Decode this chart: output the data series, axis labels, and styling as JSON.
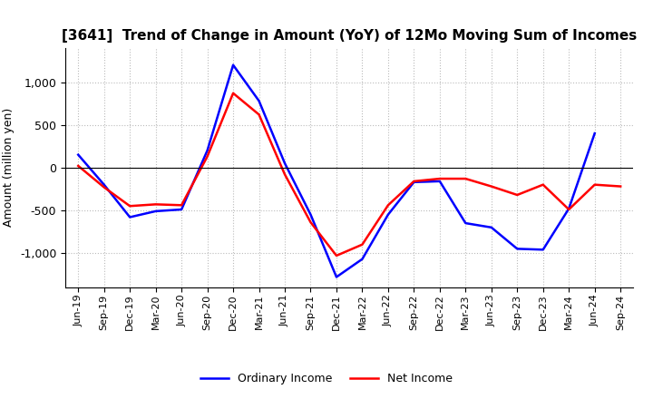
{
  "title": "[3641]  Trend of Change in Amount (YoY) of 12Mo Moving Sum of Incomes",
  "ylabel": "Amount (million yen)",
  "labels": [
    "Jun-19",
    "Sep-19",
    "Dec-19",
    "Mar-20",
    "Jun-20",
    "Sep-20",
    "Dec-20",
    "Mar-21",
    "Jun-21",
    "Sep-21",
    "Dec-21",
    "Mar-22",
    "Jun-22",
    "Sep-22",
    "Dec-22",
    "Mar-23",
    "Jun-23",
    "Sep-23",
    "Dec-23",
    "Mar-24",
    "Jun-24",
    "Sep-24"
  ],
  "ordinary_income": [
    150,
    -200,
    -580,
    -510,
    -490,
    200,
    1200,
    780,
    50,
    -550,
    -1280,
    -1070,
    -550,
    -170,
    -160,
    -650,
    -700,
    -950,
    -960,
    -480,
    400,
    null
  ],
  "net_income": [
    20,
    -230,
    -450,
    -430,
    -440,
    130,
    870,
    620,
    -80,
    -640,
    -1030,
    -900,
    -440,
    -160,
    -130,
    -130,
    -220,
    -320,
    -200,
    -490,
    -200,
    -220
  ],
  "ordinary_income_color": "#0000ff",
  "net_income_color": "#ff0000",
  "ylim": [
    -1400,
    1400
  ],
  "yticks": [
    -1000,
    -500,
    0,
    500,
    1000
  ],
  "background_color": "#ffffff",
  "grid_color": "#bbbbbb",
  "title_fontsize": 11,
  "tick_fontsize": 8,
  "ylabel_fontsize": 9,
  "legend_fontsize": 9,
  "linewidth": 1.8
}
